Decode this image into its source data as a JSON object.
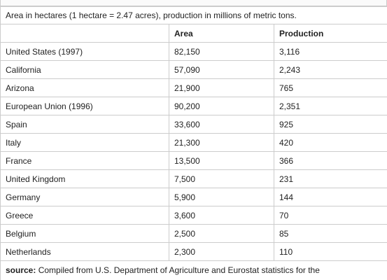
{
  "table": {
    "caption": "Area in hectares (1 hectare = 2.47 acres), production in millions of metric tons.",
    "columns": [
      "",
      "Area",
      "Production"
    ],
    "rows": [
      [
        "United States (1997)",
        "82,150",
        "3,116"
      ],
      [
        "California",
        "57,090",
        "2,243"
      ],
      [
        "Arizona",
        "21,900",
        "765"
      ],
      [
        "European Union (1996)",
        "90,200",
        "2,351"
      ],
      [
        "Spain",
        "33,600",
        "925"
      ],
      [
        "Italy",
        "21,300",
        "420"
      ],
      [
        "France",
        "13,500",
        "366"
      ],
      [
        "United Kingdom",
        "7,500",
        "231"
      ],
      [
        "Germany",
        "5,900",
        "144"
      ],
      [
        "Greece",
        "3,600",
        "70"
      ],
      [
        "Belgium",
        "2,500",
        "85"
      ],
      [
        "Netherlands",
        "2,300",
        "110"
      ]
    ],
    "source_label": "source:",
    "source_text": "Compiled from U.S. Department of Agriculture and Eurostat statistics for the"
  }
}
